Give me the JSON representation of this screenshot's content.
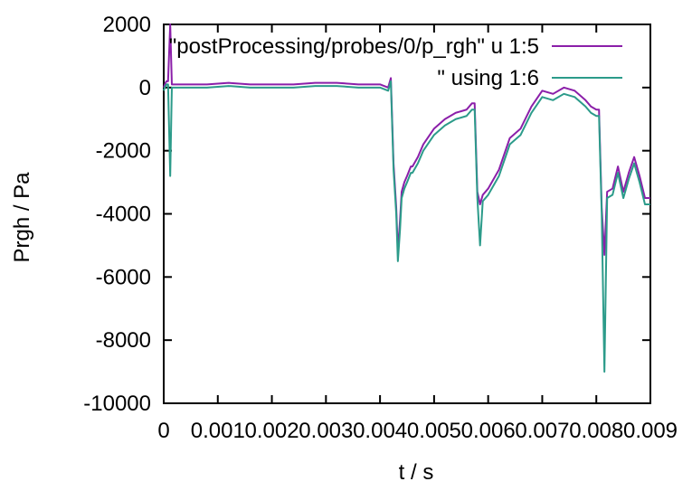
{
  "chart_data": {
    "type": "line",
    "xlabel": "t / s",
    "ylabel": "Prgh / Pa",
    "xlim": [
      0,
      0.009
    ],
    "ylim": [
      -10000,
      2000
    ],
    "x_ticks": [
      0,
      0.001,
      0.002,
      0.003,
      0.004,
      0.005,
      0.006,
      0.007,
      0.008,
      0.009
    ],
    "x_tick_labels": [
      "0",
      "0.001",
      "0.002",
      "0.003",
      "0.004",
      "0.005",
      "0.006",
      "0.007",
      "0.008",
      "0.009"
    ],
    "y_ticks": [
      -10000,
      -8000,
      -6000,
      -4000,
      -2000,
      0,
      2000
    ],
    "y_tick_labels": [
      "-10000",
      "-8000",
      "-6000",
      "-4000",
      "-2000",
      "0",
      "2000"
    ],
    "grid": false,
    "legend_position": "top-right",
    "series": [
      {
        "name": "\"postProcessing/probes/0/p_rgh\" u 1:5",
        "color": "#8b1fa9",
        "x": [
          0,
          2e-05,
          5e-05,
          8e-05,
          0.00012,
          0.00015,
          0.0002,
          0.0004,
          0.0008,
          0.0012,
          0.0016,
          0.002,
          0.0024,
          0.0028,
          0.0032,
          0.0036,
          0.004,
          0.00415,
          0.0042,
          0.00425,
          0.0043,
          0.00433,
          0.00437,
          0.0044,
          0.00445,
          0.0045,
          0.00457,
          0.0046,
          0.0047,
          0.0048,
          0.005,
          0.0052,
          0.0054,
          0.0056,
          0.0057,
          0.00575,
          0.0058,
          0.00585,
          0.0059,
          0.006,
          0.0062,
          0.0064,
          0.0066,
          0.0068,
          0.007,
          0.0072,
          0.0074,
          0.0076,
          0.0078,
          0.0079,
          0.008,
          0.00805,
          0.0081,
          0.00815,
          0.0082,
          0.0083,
          0.0084,
          0.0085,
          0.0086,
          0.0087,
          0.0088,
          0.0089,
          0.009
        ],
        "y": [
          0,
          100,
          200,
          200,
          2000,
          100,
          100,
          100,
          100,
          150,
          100,
          100,
          100,
          150,
          150,
          100,
          100,
          0,
          300,
          -2400,
          -3800,
          -5200,
          -4200,
          -3300,
          -3000,
          -2800,
          -2500,
          -2500,
          -2200,
          -1800,
          -1300,
          -1000,
          -800,
          -700,
          -500,
          -500,
          -3300,
          -3700,
          -3400,
          -3200,
          -2600,
          -1600,
          -1300,
          -600,
          -100,
          -200,
          0,
          -100,
          -400,
          -600,
          -700,
          -700,
          -3800,
          -5300,
          -3300,
          -3200,
          -2500,
          -3300,
          -2700,
          -2200,
          -2800,
          -3500,
          -3500
        ],
        "values_note": ""
      },
      {
        "name": "\" using 1:6",
        "color": "#2c9b8a",
        "x": [
          0,
          2e-05,
          5e-05,
          8e-05,
          0.00012,
          0.00015,
          0.0002,
          0.0004,
          0.0008,
          0.0012,
          0.0016,
          0.002,
          0.0024,
          0.0028,
          0.0032,
          0.0036,
          0.004,
          0.00415,
          0.0042,
          0.00425,
          0.0043,
          0.00433,
          0.00437,
          0.0044,
          0.00445,
          0.0045,
          0.00457,
          0.0046,
          0.0047,
          0.0048,
          0.005,
          0.0052,
          0.0054,
          0.0056,
          0.0057,
          0.00575,
          0.0058,
          0.00585,
          0.0059,
          0.006,
          0.0062,
          0.0064,
          0.0066,
          0.0068,
          0.007,
          0.0072,
          0.0074,
          0.0076,
          0.0078,
          0.0079,
          0.008,
          0.00805,
          0.0081,
          0.00815,
          0.0082,
          0.0083,
          0.0084,
          0.0085,
          0.0086,
          0.0087,
          0.0088,
          0.0089,
          0.009
        ],
        "y": [
          -100,
          0,
          100,
          100,
          -2800,
          0,
          0,
          0,
          0,
          50,
          0,
          0,
          0,
          50,
          50,
          0,
          0,
          -100,
          200,
          -2600,
          -4000,
          -5500,
          -4500,
          -3500,
          -3200,
          -3000,
          -2700,
          -2700,
          -2400,
          -2000,
          -1500,
          -1200,
          -1000,
          -900,
          -700,
          -700,
          -3500,
          -5000,
          -3600,
          -3400,
          -2800,
          -1800,
          -1500,
          -800,
          -300,
          -400,
          -200,
          -300,
          -600,
          -800,
          -900,
          -900,
          -4000,
          -9000,
          -3500,
          -3400,
          -2700,
          -3500,
          -2900,
          -2400,
          -3000,
          -3700,
          -3700
        ],
        "values_note": ""
      }
    ]
  }
}
